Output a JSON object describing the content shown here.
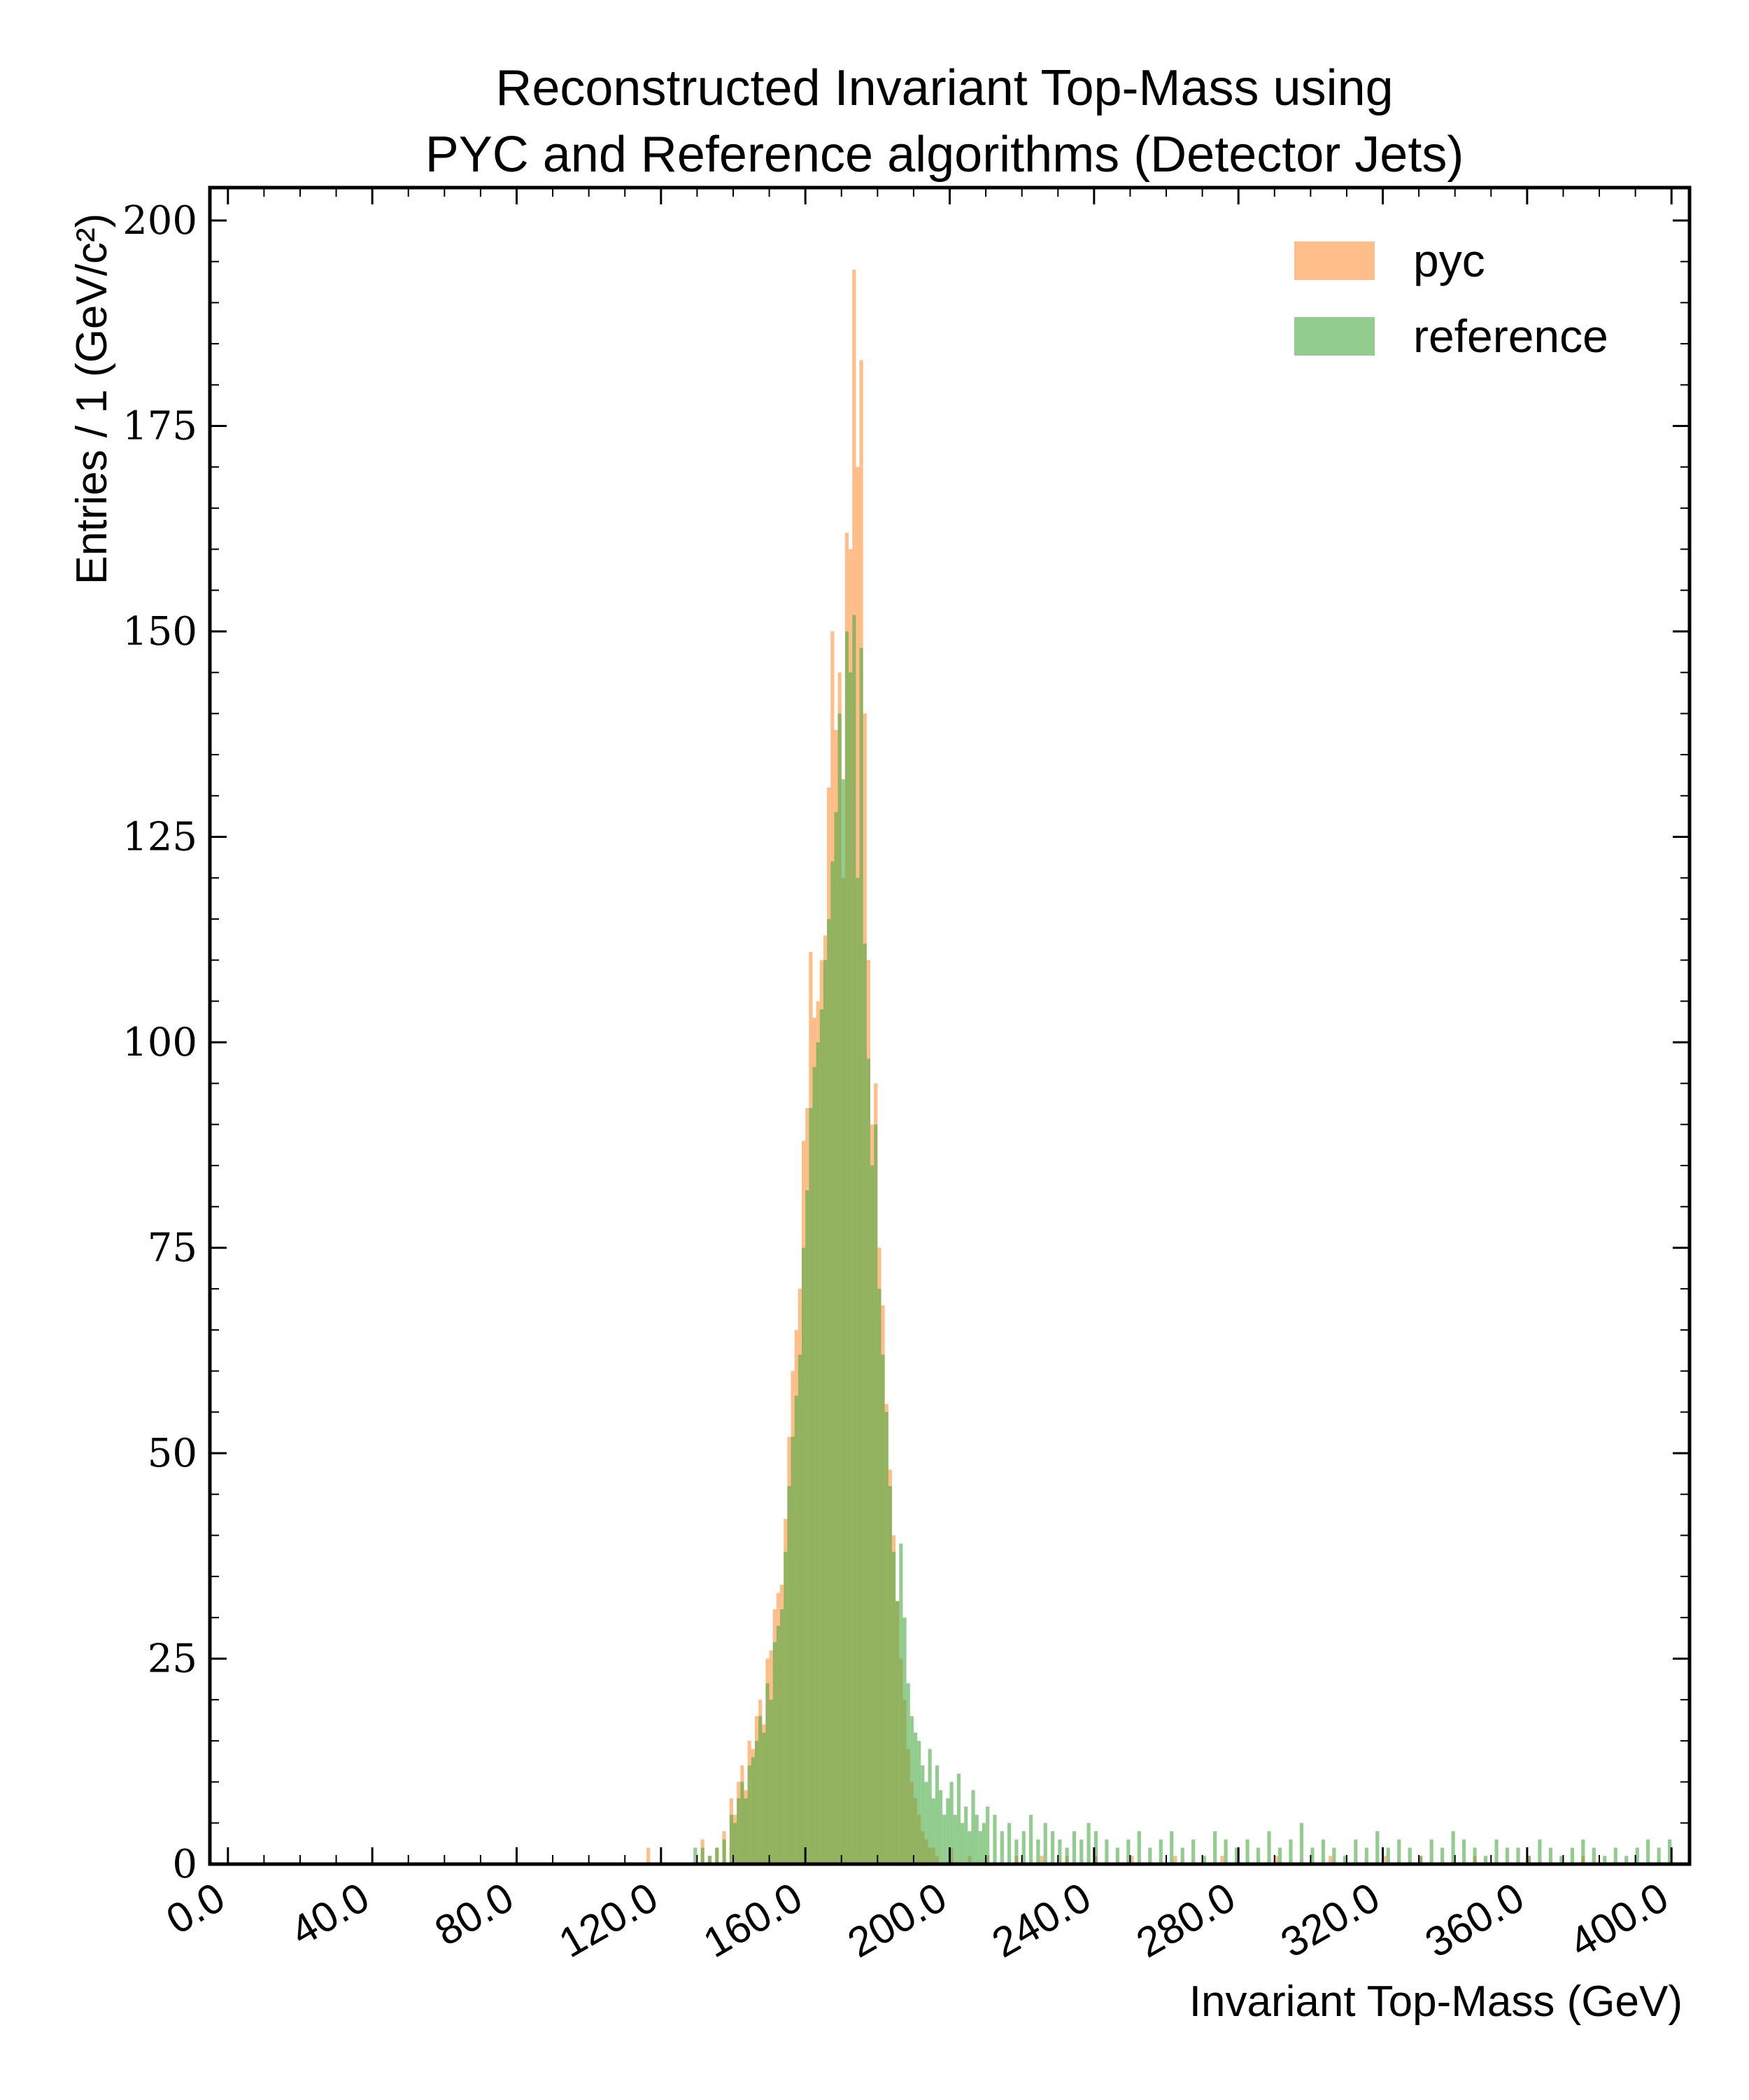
{
  "chart_data": {
    "type": "bar",
    "title_line1": "Reconstructed Invariant Top-Mass using",
    "title_line2": "PYC and Reference algorithms (Detector Jets)",
    "xlabel": "Invariant Top-Mass (GeV)",
    "ylabel": "Entries / 1 (GeV/c²)",
    "xlim": [
      -5,
      405
    ],
    "ylim": [
      0,
      204
    ],
    "bin_width": 1,
    "x_ticks": [
      "0.0",
      "40.0",
      "80.0",
      "120.0",
      "160.0",
      "200.0",
      "240.0",
      "280.0",
      "320.0",
      "360.0",
      "400.0"
    ],
    "y_ticks": [
      "0",
      "25",
      "50",
      "75",
      "100",
      "125",
      "150",
      "175",
      "200"
    ],
    "legend_position": "top-right",
    "series": [
      {
        "name": "pyc",
        "color": "#ff9a4a",
        "opacity": 0.65,
        "x": [
          116,
          131,
          133,
          135,
          137,
          139,
          140,
          141,
          142,
          143,
          144,
          145,
          146,
          147,
          148,
          149,
          150,
          151,
          152,
          153,
          154,
          155,
          156,
          157,
          158,
          159,
          160,
          161,
          162,
          163,
          164,
          165,
          166,
          167,
          168,
          169,
          170,
          171,
          172,
          173,
          174,
          175,
          176,
          177,
          178,
          179,
          180,
          181,
          182,
          183,
          184,
          185,
          186,
          187,
          188,
          189,
          190,
          191,
          192,
          193,
          194,
          195,
          196,
          200,
          205,
          210,
          218,
          225,
          232,
          240,
          250,
          262,
          275,
          290,
          305,
          320,
          330,
          345,
          360,
          375
        ],
        "values": [
          2,
          3,
          1,
          2,
          4,
          8,
          6,
          10,
          12,
          9,
          15,
          14,
          18,
          20,
          17,
          25,
          26,
          31,
          33,
          34,
          42,
          52,
          60,
          65,
          70,
          88,
          92,
          111,
          103,
          105,
          110,
          113,
          131,
          150,
          138,
          145,
          120,
          162,
          160,
          194,
          170,
          183,
          140,
          110,
          90,
          95,
          75,
          68,
          56,
          48,
          40,
          32,
          25,
          20,
          14,
          10,
          8,
          6,
          4,
          3,
          2,
          2,
          1,
          2,
          1,
          1,
          1,
          1,
          1,
          1,
          1,
          1,
          1,
          1,
          1,
          1,
          1,
          1,
          1,
          1
        ]
      },
      {
        "name": "reference",
        "color": "#4aaa42",
        "opacity": 0.6,
        "x": [
          129,
          131,
          133,
          135,
          137,
          139,
          140,
          141,
          142,
          143,
          144,
          145,
          146,
          147,
          148,
          149,
          150,
          151,
          152,
          153,
          154,
          155,
          156,
          157,
          158,
          159,
          160,
          161,
          162,
          163,
          164,
          165,
          166,
          167,
          168,
          169,
          170,
          171,
          172,
          173,
          174,
          175,
          176,
          177,
          178,
          179,
          180,
          181,
          182,
          183,
          184,
          185,
          186,
          187,
          188,
          189,
          190,
          191,
          192,
          193,
          194,
          195,
          196,
          197,
          198,
          199,
          200,
          201,
          202,
          203,
          204,
          205,
          206,
          207,
          208,
          209,
          210,
          212,
          214,
          216,
          218,
          220,
          222,
          224,
          226,
          228,
          230,
          232,
          234,
          236,
          238,
          240,
          243,
          246,
          249,
          252,
          255,
          258,
          261,
          264,
          267,
          270,
          273,
          276,
          279,
          282,
          285,
          288,
          291,
          294,
          297,
          300,
          303,
          306,
          309,
          312,
          315,
          318,
          321,
          324,
          327,
          330,
          333,
          336,
          339,
          342,
          345,
          348,
          351,
          354,
          357,
          360,
          363,
          366,
          369,
          372,
          375,
          378,
          381,
          384,
          387,
          390,
          393,
          396,
          399
        ],
        "values": [
          2,
          2,
          1,
          2,
          3,
          6,
          5,
          8,
          10,
          8,
          12,
          13,
          15,
          18,
          16,
          22,
          20,
          27,
          29,
          31,
          38,
          46,
          52,
          57,
          62,
          75,
          82,
          92,
          97,
          100,
          104,
          110,
          115,
          122,
          128,
          140,
          132,
          150,
          145,
          152,
          120,
          148,
          112,
          98,
          85,
          90,
          70,
          62,
          55,
          46,
          38,
          32,
          39,
          30,
          22,
          18,
          16,
          15,
          12,
          10,
          14,
          8,
          12,
          9,
          6,
          8,
          10,
          6,
          11,
          5,
          7,
          4,
          9,
          6,
          4,
          5,
          7,
          6,
          4,
          5,
          3,
          4,
          6,
          3,
          5,
          4,
          3,
          2,
          4,
          3,
          5,
          4,
          3,
          2,
          3,
          4,
          2,
          3,
          4,
          2,
          3,
          1,
          4,
          3,
          2,
          3,
          2,
          4,
          2,
          3,
          5,
          2,
          3,
          2,
          1,
          3,
          2,
          4,
          2,
          3,
          2,
          1,
          3,
          2,
          4,
          3,
          2,
          1,
          3,
          2,
          2,
          1,
          3,
          2,
          1,
          2,
          3,
          2,
          1,
          2,
          1,
          2,
          3,
          2,
          3
        ]
      }
    ]
  }
}
